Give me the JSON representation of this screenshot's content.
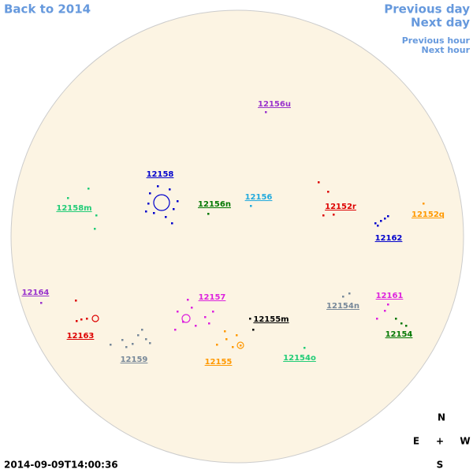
{
  "nav": {
    "back": "Back to 2014",
    "previous_day": "Previous day",
    "next_day": "Next day",
    "previous_hour": "Previous hour",
    "next_hour": "Next hour"
  },
  "timestamp": "2014-09-09T14:00:36",
  "compass": {
    "north": "N",
    "east": "E",
    "center": "+",
    "west": "W",
    "south": "S"
  },
  "regions": [
    {
      "label": "12156u",
      "color": "#9933cc"
    },
    {
      "label": "12158",
      "color": "#0000cc"
    },
    {
      "label": "12156n",
      "color": "#007700"
    },
    {
      "label": "12156",
      "color": "#22aadd"
    },
    {
      "label": "12152r",
      "color": "#dd0000"
    },
    {
      "label": "12152q",
      "color": "#ff9900"
    },
    {
      "label": "12158m",
      "color": "#22cc77"
    },
    {
      "label": "12162",
      "color": "#0000cc"
    },
    {
      "label": "12164",
      "color": "#9933cc"
    },
    {
      "label": "12157",
      "color": "#dd22dd"
    },
    {
      "label": "12161",
      "color": "#dd22dd"
    },
    {
      "label": "12154n",
      "color": "#778899"
    },
    {
      "label": "12155m",
      "color": "#000000"
    },
    {
      "label": "12163",
      "color": "#dd0000"
    },
    {
      "label": "12154",
      "color": "#007700"
    },
    {
      "label": "12159",
      "color": "#778899"
    },
    {
      "label": "12155",
      "color": "#ff9900"
    },
    {
      "label": "12154o",
      "color": "#22cc77"
    }
  ]
}
